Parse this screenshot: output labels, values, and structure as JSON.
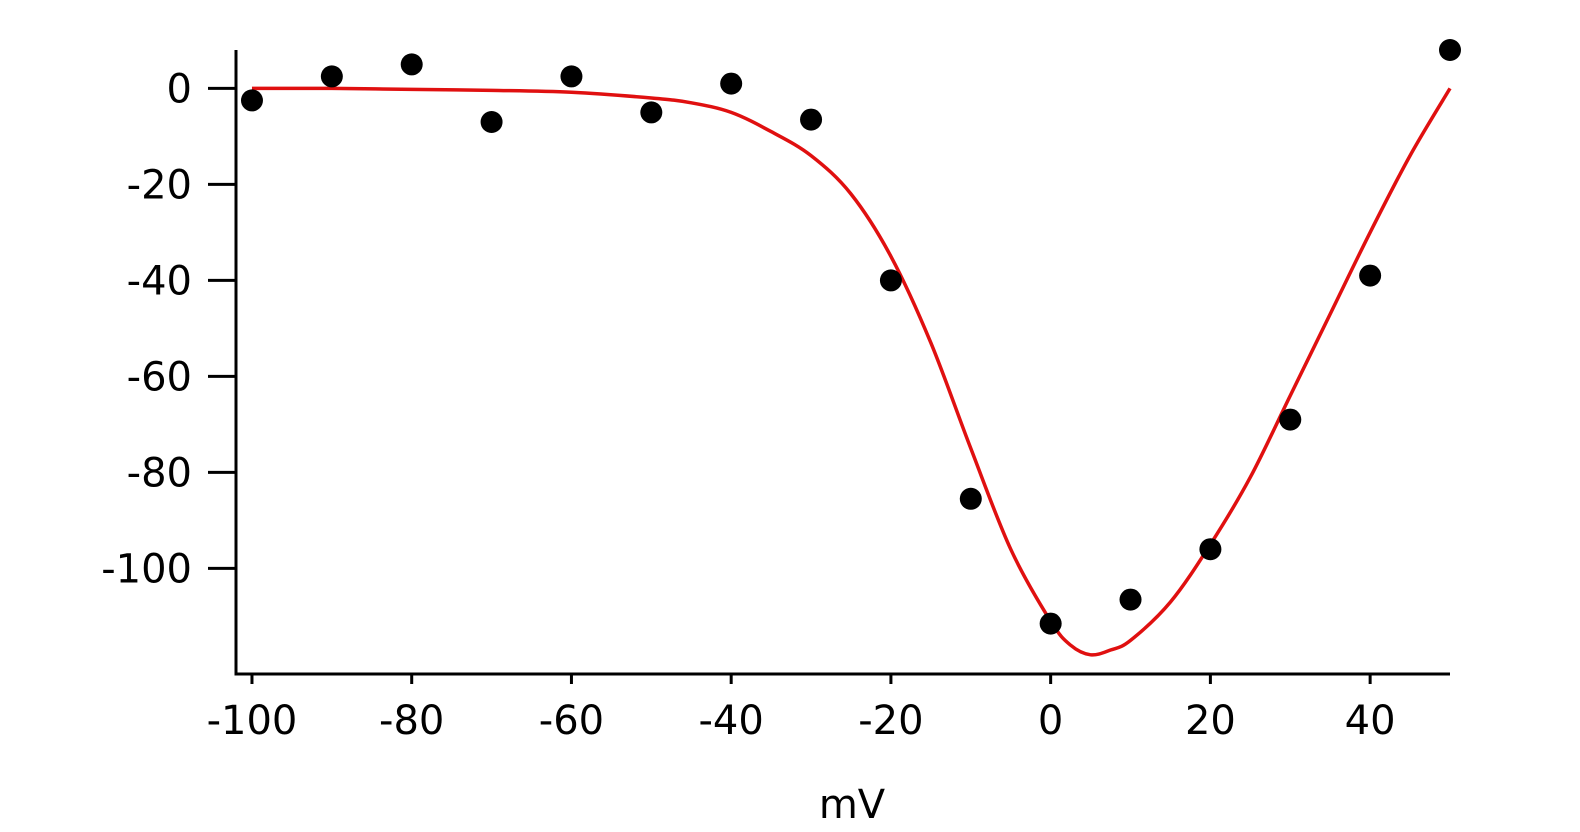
{
  "chart_data": {
    "type": "scatter",
    "title": "",
    "xlabel": "mV",
    "ylabel": "",
    "xlim": [
      -102,
      50
    ],
    "ylim": [
      -122,
      8
    ],
    "xticks": [
      -100,
      -80,
      -60,
      -40,
      -20,
      0,
      20,
      40
    ],
    "yticks": [
      0,
      -20,
      -40,
      -60,
      -80,
      -100
    ],
    "xtick_labels": [
      "-100",
      "-80",
      "-60",
      "-40",
      "-20",
      "0",
      "20",
      "40"
    ],
    "ytick_labels": [
      "0",
      "-20",
      "-40",
      "-60",
      "-80",
      "-100"
    ],
    "grid": false,
    "legend": "none",
    "series": [
      {
        "type": "scatter",
        "color": "#000000",
        "points": [
          [
            -100,
            -2.5
          ],
          [
            -90,
            2.5
          ],
          [
            -80,
            5
          ],
          [
            -70,
            -7
          ],
          [
            -60,
            2.5
          ],
          [
            -50,
            -5
          ],
          [
            -40,
            1
          ],
          [
            -30,
            -6.5
          ],
          [
            -20,
            -40
          ],
          [
            -10,
            -85.5
          ],
          [
            0,
            -111.5
          ],
          [
            10,
            -106.5
          ],
          [
            20,
            -96
          ],
          [
            30,
            -69
          ],
          [
            40,
            -39
          ],
          [
            50,
            8
          ]
        ]
      },
      {
        "type": "line",
        "color": "#e01010",
        "points": [
          [
            -100,
            0
          ],
          [
            -90,
            0
          ],
          [
            -80,
            -0.2
          ],
          [
            -70,
            -0.4
          ],
          [
            -60,
            -0.8
          ],
          [
            -50,
            -2
          ],
          [
            -45,
            -3
          ],
          [
            -40,
            -5
          ],
          [
            -35,
            -9
          ],
          [
            -30,
            -14
          ],
          [
            -25,
            -22
          ],
          [
            -20,
            -35
          ],
          [
            -15,
            -53
          ],
          [
            -10,
            -75
          ],
          [
            -5,
            -96
          ],
          [
            0,
            -111
          ],
          [
            2.5,
            -116
          ],
          [
            5,
            -118
          ],
          [
            7.5,
            -117
          ],
          [
            10,
            -115
          ],
          [
            15,
            -107
          ],
          [
            20,
            -95
          ],
          [
            25,
            -81
          ],
          [
            30,
            -64
          ],
          [
            35,
            -47
          ],
          [
            40,
            -30
          ],
          [
            45,
            -14
          ],
          [
            50,
            0
          ]
        ]
      }
    ]
  }
}
